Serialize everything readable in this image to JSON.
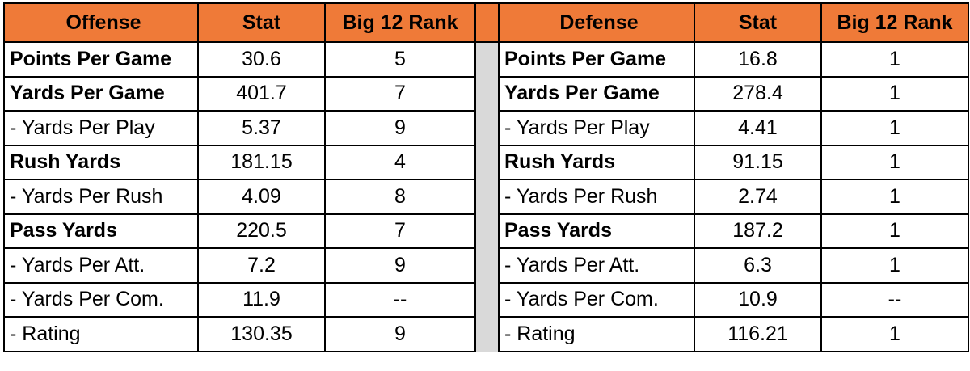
{
  "colors": {
    "header_bg": "#ef7a38",
    "divider_bg": "#d9d9d9",
    "border": "#000000"
  },
  "offense": {
    "headers": [
      "Offense",
      "Stat",
      "Big 12 Rank"
    ],
    "rows": [
      {
        "label": "Points Per Game",
        "stat": "30.6",
        "rank": "5",
        "bold": true
      },
      {
        "label": "Yards Per Game",
        "stat": "401.7",
        "rank": "7",
        "bold": true
      },
      {
        "label": "- Yards Per Play",
        "stat": "5.37",
        "rank": "9",
        "bold": false
      },
      {
        "label": "Rush Yards",
        "stat": "181.15",
        "rank": "4",
        "bold": true
      },
      {
        "label": "- Yards Per Rush",
        "stat": "4.09",
        "rank": "8",
        "bold": false
      },
      {
        "label": "Pass Yards",
        "stat": "220.5",
        "rank": "7",
        "bold": true
      },
      {
        "label": "- Yards Per Att.",
        "stat": "7.2",
        "rank": "9",
        "bold": false
      },
      {
        "label": "- Yards Per Com.",
        "stat": "11.9",
        "rank": "--",
        "bold": false
      },
      {
        "label": "- Rating",
        "stat": "130.35",
        "rank": "9",
        "bold": false
      }
    ]
  },
  "defense": {
    "headers": [
      "Defense",
      "Stat",
      "Big 12 Rank"
    ],
    "rows": [
      {
        "label": "Points Per Game",
        "stat": "16.8",
        "rank": "1",
        "bold": true
      },
      {
        "label": "Yards Per Game",
        "stat": "278.4",
        "rank": "1",
        "bold": true
      },
      {
        "label": "- Yards Per Play",
        "stat": "4.41",
        "rank": "1",
        "bold": false
      },
      {
        "label": "Rush Yards",
        "stat": "91.15",
        "rank": "1",
        "bold": true
      },
      {
        "label": "- Yards Per Rush",
        "stat": "2.74",
        "rank": "1",
        "bold": false
      },
      {
        "label": "Pass Yards",
        "stat": "187.2",
        "rank": "1",
        "bold": true
      },
      {
        "label": "- Yards Per Att.",
        "stat": "6.3",
        "rank": "1",
        "bold": false
      },
      {
        "label": "- Yards Per Com.",
        "stat": "10.9",
        "rank": "--",
        "bold": false
      },
      {
        "label": "- Rating",
        "stat": "116.21",
        "rank": "1",
        "bold": false
      }
    ]
  }
}
